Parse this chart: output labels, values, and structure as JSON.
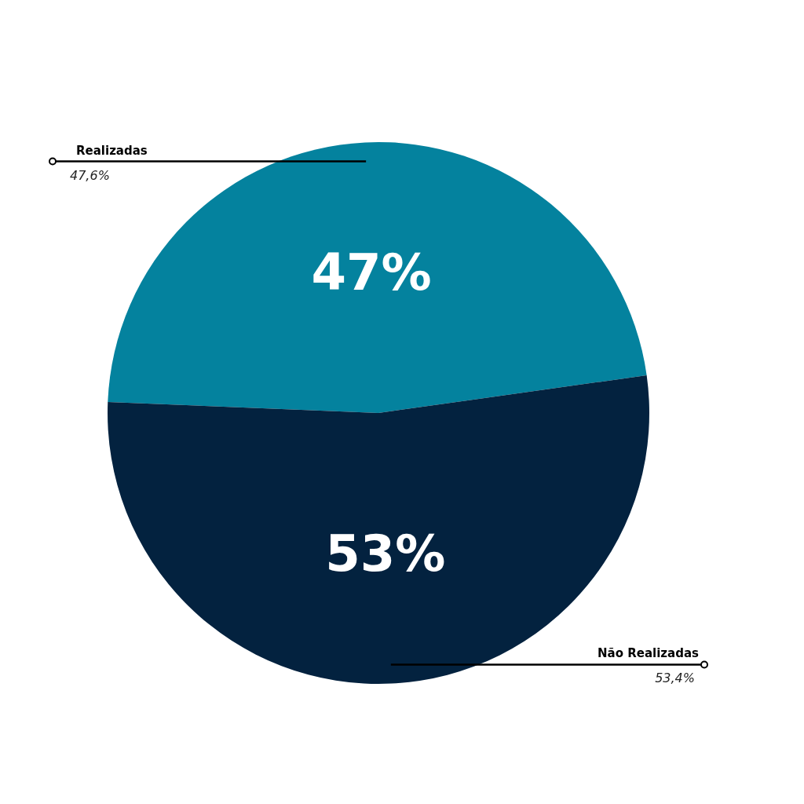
{
  "chart_data": {
    "type": "pie",
    "categories": [
      "Realizadas",
      "Não Realizadas"
    ],
    "values": [
      47.6,
      53.4
    ],
    "colors": [
      "#04829e",
      "#03223f"
    ],
    "value_labels": [
      "47,6%",
      "53,4%"
    ],
    "annotations": [
      "47%",
      "53%"
    ]
  }
}
